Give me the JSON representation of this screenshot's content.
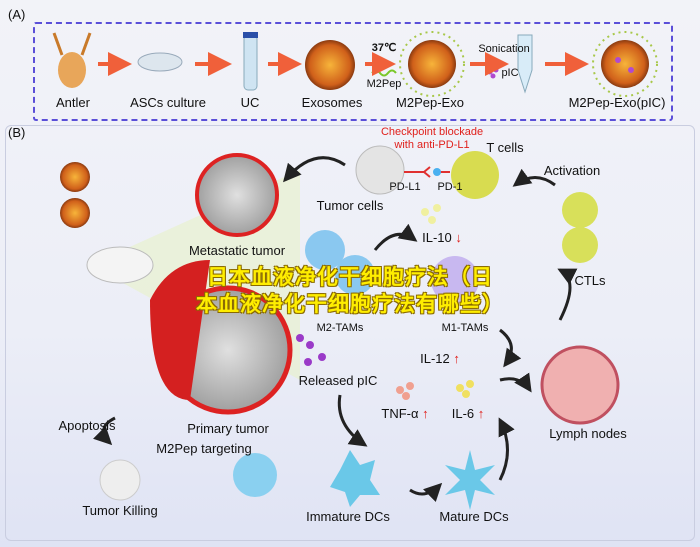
{
  "panel_a": {
    "label": "(A)",
    "steps": [
      "Antler",
      "ASCs culture",
      "UC",
      "Exosomes",
      "M2Pep-Exo",
      "M2Pep-Exo(pIC)"
    ],
    "temp": "37℃",
    "peptide": "M2Pep",
    "sonication": "Sonication",
    "cargo": "pIC"
  },
  "panel_b": {
    "label": "(B)",
    "checkpoint_line1": "Checkpoint blockade",
    "checkpoint_line2": "with anti-PD-L1",
    "t_cells": "T cells",
    "pd_l1": "PD-L1",
    "pd_1": "PD-1",
    "tumor_cells": "Tumor cells",
    "metastatic_tumor": "Metastatic tumor",
    "il10": "IL-10",
    "activation": "Activation",
    "ctls": "CTLs",
    "m2_tams": "M2-TAMs",
    "m1_tams": "M1-TAMs",
    "il12": "IL-12",
    "released_pic": "Released pIC",
    "tnf": "TNF-α",
    "il6": "IL-6",
    "lymph_nodes": "Lymph nodes",
    "apoptosis": "Apoptosis",
    "primary_tumor": "Primary tumor",
    "m2pep_targeting": "M2Pep targeting",
    "tumor_killing": "Tumor Killing",
    "immature_dcs": "Immature DCs",
    "mature_dcs": "Mature DCs",
    "up_arrow": "↑",
    "down_arrow": "↓"
  },
  "watermark": {
    "line1": "日本血液净化干细胞疗法（日",
    "line2": "本血液净化干细胞疗法有哪些）"
  },
  "colors": {
    "frame": "#5b4fd8",
    "arrow": "#f0603a",
    "highlight": "#e0201c",
    "watermark": "#ffee00"
  }
}
